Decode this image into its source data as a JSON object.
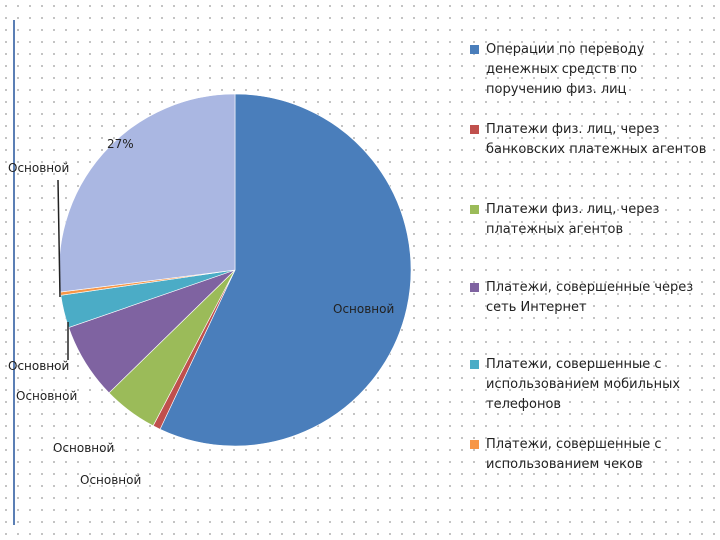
{
  "chart_data": {
    "type": "pie",
    "categories": [
      "Операции по переводу денежных средств по поручению физ. лиц",
      "Платежи физ. лиц, через банковских платежных агентов",
      "Платежи физ. лиц, через платежных агентов",
      "Платежи, совершенные через сеть Интернет",
      "Платежи, совершенные с использованием мобильных телефонов",
      "Платежи, совершенные с использованием чеков",
      null
    ],
    "values": [
      57,
      0.7,
      5,
      7,
      3,
      0.3,
      27
    ],
    "data_labels": [
      "Основной",
      "Основной",
      "Основной",
      "Основной",
      "Основной",
      "Основной",
      "27%"
    ],
    "colors": [
      "#4a7ebb",
      "#c0504d",
      "#9bbb59",
      "#7f63a1",
      "#4bacc6",
      "#f79646",
      "#aab7e2"
    ]
  }
}
